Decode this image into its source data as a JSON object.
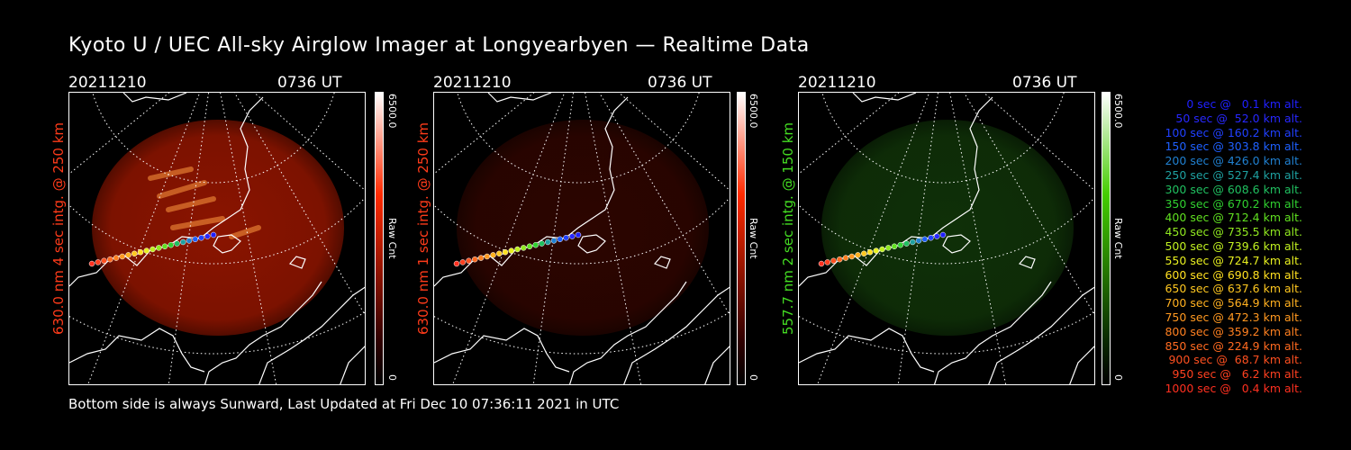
{
  "title": "Kyoto U / UEC All-sky Airglow Imager at Longyearbyen — Realtime Data",
  "panels": [
    {
      "date": "20211210",
      "time": "0736 UT",
      "ylabel": "630.0 nm 4 sec intg. @ 250 km",
      "ylabel_color": "#ff3b1a",
      "cbar_max": "6500.0",
      "cbar_min": "0",
      "cbar_unit": "Raw Cnt",
      "cbar_color": "#ff2a00",
      "glow": "#8a1400",
      "bright": true
    },
    {
      "date": "20211210",
      "time": "0736 UT",
      "ylabel": "630.0 nm 1 sec intg. @ 250 km",
      "ylabel_color": "#ff3b1a",
      "cbar_max": "6500.0",
      "cbar_min": "0",
      "cbar_unit": "Raw Cnt",
      "cbar_color": "#ff2a00",
      "glow": "#2c0500",
      "bright": false
    },
    {
      "date": "20211210",
      "time": "0736 UT",
      "ylabel": "557.7 nm 2 sec intg. @ 150 km",
      "ylabel_color": "#44dd22",
      "cbar_max": "6500.0",
      "cbar_min": "0",
      "cbar_unit": "Raw Cnt",
      "cbar_color": "#44cc00",
      "glow": "#0f3008",
      "bright": false
    }
  ],
  "legend": [
    {
      "text": "0 sec @   0.1 km alt.",
      "color": "#2020ff"
    },
    {
      "text": "50 sec @  52.0 km alt.",
      "color": "#2828ff"
    },
    {
      "text": "100 sec @ 160.2 km alt.",
      "color": "#2040ff"
    },
    {
      "text": "150 sec @ 303.8 km alt.",
      "color": "#1e60ff"
    },
    {
      "text": "200 sec @ 426.0 km alt.",
      "color": "#2080d0"
    },
    {
      "text": "250 sec @ 527.4 km alt.",
      "color": "#1ea0a0"
    },
    {
      "text": "300 sec @ 608.6 km alt.",
      "color": "#20c060"
    },
    {
      "text": "350 sec @ 670.2 km alt.",
      "color": "#30d030"
    },
    {
      "text": "400 sec @ 712.4 km alt.",
      "color": "#60e020"
    },
    {
      "text": "450 sec @ 735.5 km alt.",
      "color": "#90e820"
    },
    {
      "text": "500 sec @ 739.6 km alt.",
      "color": "#c0f020"
    },
    {
      "text": "550 sec @ 724.7 km alt.",
      "color": "#e8f020"
    },
    {
      "text": "600 sec @ 690.8 km alt.",
      "color": "#ffe020"
    },
    {
      "text": "650 sec @ 637.6 km alt.",
      "color": "#ffc820"
    },
    {
      "text": "700 sec @ 564.9 km alt.",
      "color": "#ffb020"
    },
    {
      "text": "750 sec @ 472.3 km alt.",
      "color": "#ff9820"
    },
    {
      "text": "800 sec @ 359.2 km alt.",
      "color": "#ff8020"
    },
    {
      "text": "850 sec @ 224.9 km alt.",
      "color": "#ff6a20"
    },
    {
      "text": "900 sec @  68.7 km alt.",
      "color": "#ff5020"
    },
    {
      "text": "950 sec @   6.2 km alt.",
      "color": "#ff4020"
    },
    {
      "text": "1000 sec @   0.4 km alt.",
      "color": "#ff3020"
    }
  ],
  "footer": "Bottom side is always Sunward, Last Updated at Fri Dec 10 07:36:11 2021 in UTC"
}
